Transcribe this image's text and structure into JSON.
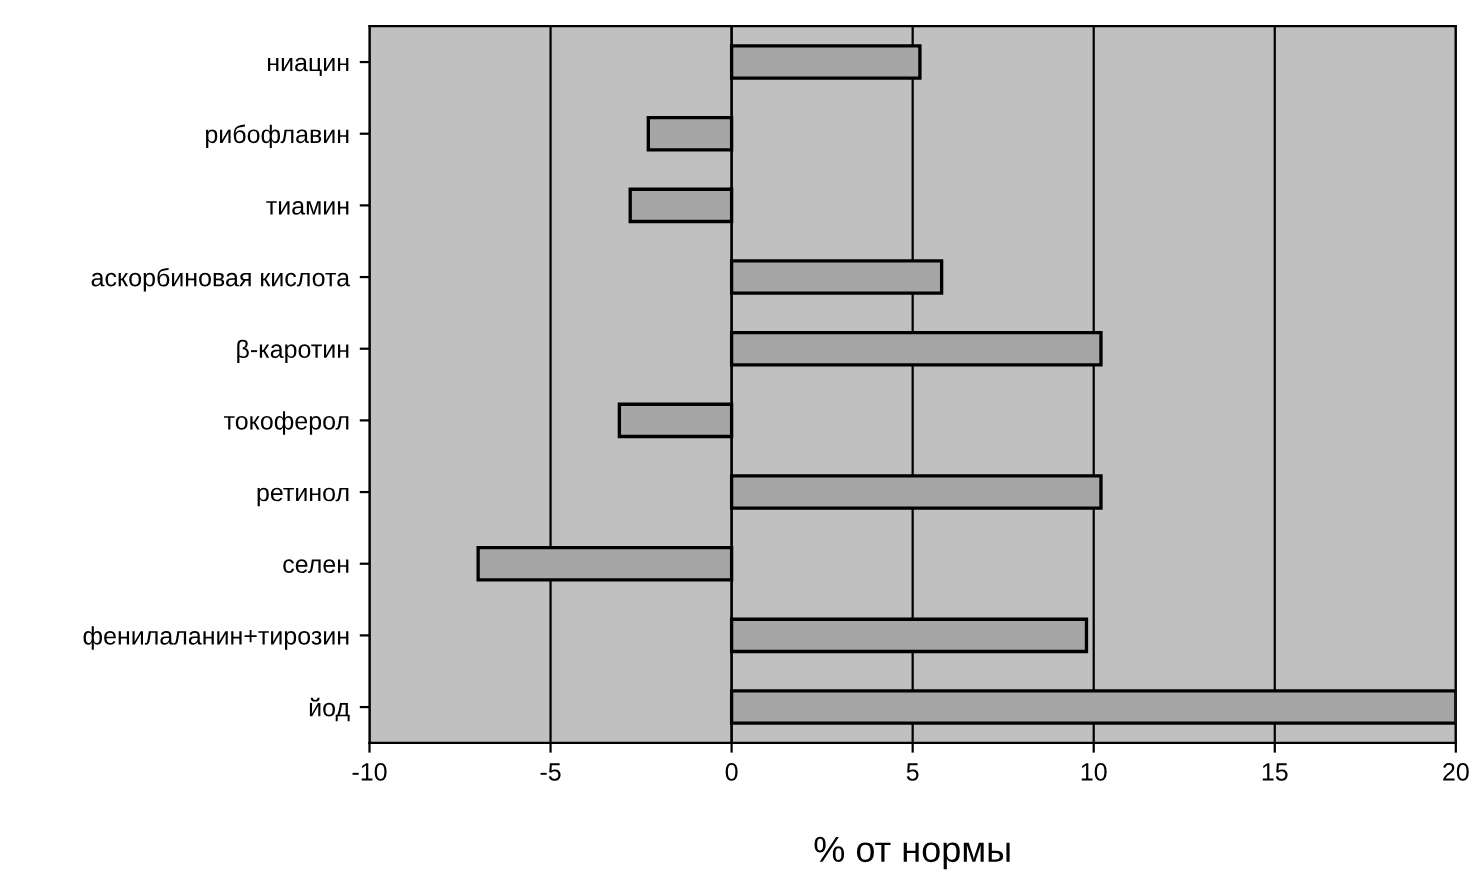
{
  "chart_data": {
    "type": "bar",
    "orientation": "horizontal",
    "xlabel": "% от нормы",
    "categories": [
      "ниацин",
      "рибофлавин",
      "тиамин",
      "аскорбиновая кислота",
      "β-каротин",
      "токоферол",
      "ретинол",
      "селен",
      "фенилаланин+тирозин",
      "йод"
    ],
    "values": [
      5.2,
      -2.3,
      -2.8,
      5.8,
      10.2,
      -3.1,
      10.2,
      -7.0,
      9.8,
      20
    ],
    "color": "#a6a6a6",
    "xlim": [
      -10,
      20
    ],
    "xticks": [
      -10,
      -5,
      0,
      5,
      10,
      15,
      20
    ],
    "grid": "x"
  }
}
